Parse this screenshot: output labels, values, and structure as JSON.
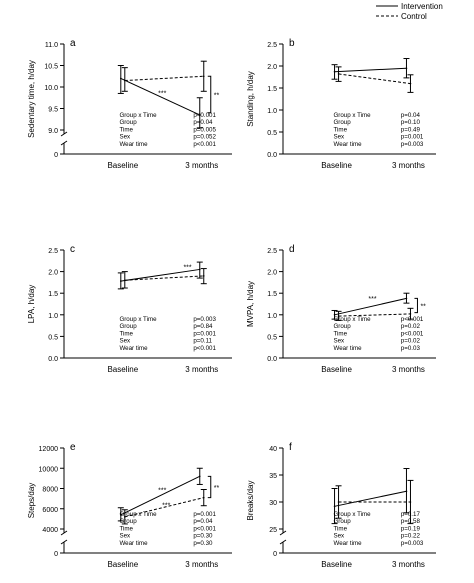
{
  "legend": {
    "intervention": "Intervention",
    "control": "Control",
    "placement": "top-right"
  },
  "line_color": "#000000",
  "chart_data": [
    {
      "panel": "a",
      "type": "line",
      "ylabel": "Sedentary time, h/day",
      "ylim": [
        0,
        11
      ],
      "axis_break": true,
      "yticks": [
        {
          "v": 0,
          "label": "0"
        },
        {
          "v": 9,
          "label": "9.0"
        },
        {
          "v": 9.5,
          "label": "9.5"
        },
        {
          "v": 10,
          "label": "10.0"
        },
        {
          "v": 10.5,
          "label": "10.5"
        },
        {
          "v": 11,
          "label": "11.0"
        }
      ],
      "categories": [
        "Baseline",
        "3 months"
      ],
      "series": [
        {
          "name": "Intervention",
          "values": [
            10.2,
            9.35
          ],
          "err_low": [
            9.85,
            9.05
          ],
          "err_high": [
            10.5,
            9.75
          ]
        },
        {
          "name": "Control",
          "values": [
            10.15,
            10.25
          ],
          "err_low": [
            9.9,
            9.9
          ],
          "err_high": [
            10.45,
            10.6
          ]
        }
      ],
      "annotations": [
        {
          "text": "***",
          "x": 0.5,
          "y": 9.8
        }
      ],
      "bracket": {
        "at": 1,
        "from": 9.4,
        "to": 10.25,
        "label": "**"
      },
      "stats": [
        {
          "label": "Group x Time",
          "value": "p<0.001"
        },
        {
          "label": "Group",
          "value": "p=0.04"
        },
        {
          "label": "Time",
          "value": "p=0.005"
        },
        {
          "label": "Sex",
          "value": "p=0.052"
        },
        {
          "label": "Wear time",
          "value": "p<0.001"
        }
      ]
    },
    {
      "panel": "b",
      "type": "line",
      "ylabel": "Standing, h/day",
      "ylim": [
        0,
        2.5
      ],
      "axis_break": false,
      "yticks": [
        {
          "v": 0,
          "label": "0.0"
        },
        {
          "v": 0.5,
          "label": "0.5"
        },
        {
          "v": 1,
          "label": "1.0"
        },
        {
          "v": 1.5,
          "label": "1.5"
        },
        {
          "v": 2,
          "label": "2.0"
        },
        {
          "v": 2.5,
          "label": "2.5"
        }
      ],
      "categories": [
        "Baseline",
        "3 months"
      ],
      "series": [
        {
          "name": "Intervention",
          "values": [
            1.87,
            1.95
          ],
          "err_low": [
            1.7,
            1.73
          ],
          "err_high": [
            2.03,
            2.17
          ]
        },
        {
          "name": "Control",
          "values": [
            1.82,
            1.6
          ],
          "err_low": [
            1.65,
            1.4
          ],
          "err_high": [
            1.98,
            1.8
          ]
        }
      ],
      "annotations": [],
      "bracket": null,
      "stats": [
        {
          "label": "Group x Time",
          "value": "p=0.04"
        },
        {
          "label": "Group",
          "value": "p=0.10"
        },
        {
          "label": "Time",
          "value": "p=0.49"
        },
        {
          "label": "Sex",
          "value": "p=0.001"
        },
        {
          "label": "Wear time",
          "value": "p=0.003"
        }
      ]
    },
    {
      "panel": "c",
      "type": "line",
      "ylabel": "LPA, h/day",
      "ylim": [
        0,
        2.5
      ],
      "axis_break": false,
      "yticks": [
        {
          "v": 0,
          "label": "0.0"
        },
        {
          "v": 0.5,
          "label": "0.5"
        },
        {
          "v": 1,
          "label": "1.0"
        },
        {
          "v": 1.5,
          "label": "1.5"
        },
        {
          "v": 2,
          "label": "2.0"
        },
        {
          "v": 2.5,
          "label": "2.5"
        }
      ],
      "categories": [
        "Baseline",
        "3 months"
      ],
      "series": [
        {
          "name": "Intervention",
          "values": [
            1.78,
            2.05
          ],
          "err_low": [
            1.6,
            1.85
          ],
          "err_high": [
            1.97,
            2.22
          ]
        },
        {
          "name": "Control",
          "values": [
            1.8,
            1.9
          ],
          "err_low": [
            1.62,
            1.72
          ],
          "err_high": [
            2.0,
            2.07
          ]
        }
      ],
      "annotations": [
        {
          "text": "***",
          "x": 0.82,
          "y": 2.05
        }
      ],
      "bracket": null,
      "stats": [
        {
          "label": "Group x Time",
          "value": "p=0.003"
        },
        {
          "label": "Group",
          "value": "p=0.84"
        },
        {
          "label": "Time",
          "value": "p=0.001"
        },
        {
          "label": "Sex",
          "value": "p=0.11"
        },
        {
          "label": "Wear time",
          "value": "p<0.001"
        }
      ]
    },
    {
      "panel": "d",
      "type": "line",
      "ylabel": "MVPA, h/day",
      "ylim": [
        0,
        2.5
      ],
      "axis_break": false,
      "yticks": [
        {
          "v": 0,
          "label": "0.0"
        },
        {
          "v": 0.5,
          "label": "0.5"
        },
        {
          "v": 1,
          "label": "1.0"
        },
        {
          "v": 1.5,
          "label": "1.5"
        },
        {
          "v": 2,
          "label": "2.0"
        },
        {
          "v": 2.5,
          "label": "2.5"
        }
      ],
      "categories": [
        "Baseline",
        "3 months"
      ],
      "series": [
        {
          "name": "Intervention",
          "values": [
            1.0,
            1.38
          ],
          "err_low": [
            0.9,
            1.27
          ],
          "err_high": [
            1.1,
            1.5
          ]
        },
        {
          "name": "Control",
          "values": [
            0.97,
            1.02
          ],
          "err_low": [
            0.87,
            0.9
          ],
          "err_high": [
            1.08,
            1.15
          ]
        }
      ],
      "annotations": [
        {
          "text": "***",
          "x": 0.5,
          "y": 1.32
        }
      ],
      "bracket": {
        "at": 1,
        "from": 1.05,
        "to": 1.38,
        "label": "**"
      },
      "stats": [
        {
          "label": "Group x Time",
          "value": "p<0.001"
        },
        {
          "label": "Group",
          "value": "p=0.02"
        },
        {
          "label": "Time",
          "value": "p<0.001"
        },
        {
          "label": "Sex",
          "value": "p=0.02"
        },
        {
          "label": "Wear time",
          "value": "p=0.03"
        }
      ]
    },
    {
      "panel": "e",
      "type": "line",
      "ylabel": "Steps/day",
      "ylim": [
        0,
        12000
      ],
      "axis_break": true,
      "yticks": [
        {
          "v": 0,
          "label": "0"
        },
        {
          "v": 4000,
          "label": "4000"
        },
        {
          "v": 6000,
          "label": "6000"
        },
        {
          "v": 8000,
          "label": "8000"
        },
        {
          "v": 10000,
          "label": "10000"
        },
        {
          "v": 12000,
          "label": "12000"
        }
      ],
      "categories": [
        "Baseline",
        "3 months"
      ],
      "series": [
        {
          "name": "Intervention",
          "values": [
            5400,
            9200
          ],
          "err_low": [
            4800,
            8400
          ],
          "err_high": [
            6100,
            10000
          ]
        },
        {
          "name": "Control",
          "values": [
            5200,
            7100
          ],
          "err_low": [
            4500,
            6300
          ],
          "err_high": [
            5900,
            7900
          ]
        }
      ],
      "annotations": [
        {
          "text": "***",
          "x": 0.5,
          "y": 7600
        },
        {
          "text": "***",
          "x": 0.55,
          "y": 6100
        }
      ],
      "bracket": {
        "at": 1,
        "from": 7100,
        "to": 9200,
        "label": "**"
      },
      "stats": [
        {
          "label": "Group x Time",
          "value": "p=0.001"
        },
        {
          "label": "Group",
          "value": "p=0.04"
        },
        {
          "label": "Time",
          "value": "p<0.001"
        },
        {
          "label": "Sex",
          "value": "p=0.30"
        },
        {
          "label": "Wear time",
          "value": "p=0.30"
        }
      ]
    },
    {
      "panel": "f",
      "type": "line",
      "ylabel": "Breaks/day",
      "ylim": [
        0,
        40
      ],
      "axis_break": true,
      "yticks": [
        {
          "v": 0,
          "label": "0"
        },
        {
          "v": 25,
          "label": "25"
        },
        {
          "v": 30,
          "label": "30"
        },
        {
          "v": 35,
          "label": "35"
        },
        {
          "v": 40,
          "label": "40"
        }
      ],
      "categories": [
        "Baseline",
        "3 months"
      ],
      "series": [
        {
          "name": "Intervention",
          "values": [
            29.2,
            32.0
          ],
          "err_low": [
            26.0,
            28.0
          ],
          "err_high": [
            32.5,
            36.2
          ]
        },
        {
          "name": "Control",
          "values": [
            30.0,
            30.0
          ],
          "err_low": [
            27.0,
            26.0
          ],
          "err_high": [
            33.0,
            34.0
          ]
        }
      ],
      "annotations": [],
      "bracket": null,
      "stats": [
        {
          "label": "Group x Time",
          "value": "p=0.17"
        },
        {
          "label": "Group",
          "value": "p=0.58"
        },
        {
          "label": "Time",
          "value": "p=0.19"
        },
        {
          "label": "Sex",
          "value": "p=0.22"
        },
        {
          "label": "Wear time",
          "value": "p=0.003"
        }
      ]
    }
  ]
}
